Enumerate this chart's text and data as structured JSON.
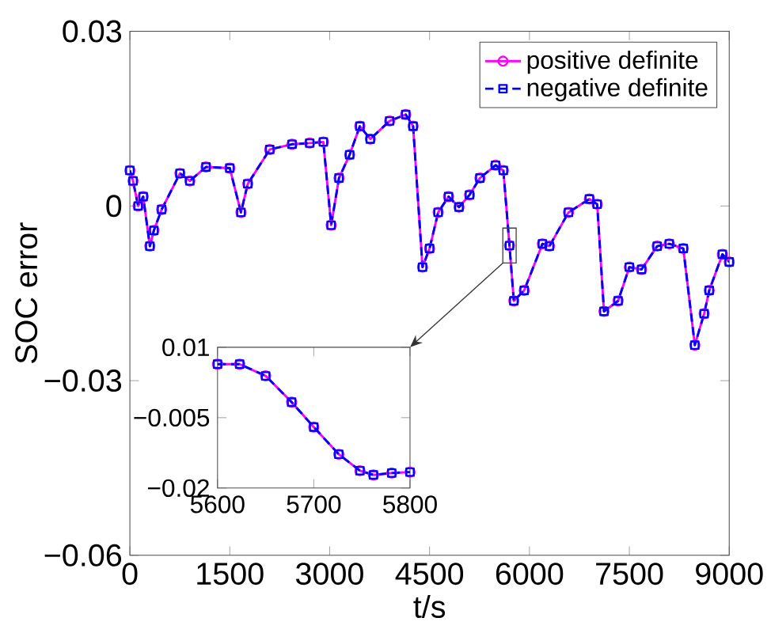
{
  "chart_data": [
    {
      "type": "line",
      "xlabel": "t/s",
      "ylabel": "SOC error",
      "x": [
        0,
        47,
        124,
        200,
        300,
        360,
        477,
        752,
        900,
        1143,
        1500,
        1668,
        1770,
        2100,
        2435,
        2700,
        2905,
        3022,
        3140,
        3300,
        3453,
        3610,
        3900,
        4142,
        4253,
        4394,
        4500,
        4629,
        4785,
        4942,
        5100,
        5256,
        5491,
        5608,
        5700,
        5765,
        5921,
        6195,
        6300,
        6586,
        6900,
        7017,
        7119,
        7331,
        7500,
        7683,
        7918,
        8100,
        8310,
        8483,
        8623,
        8700,
        8897,
        9000
      ],
      "series": [
        {
          "name": "positive definite",
          "color": "#ff00ff",
          "marker": "circle",
          "line_style": "solid",
          "values": [
            0.0061,
            0.0043,
            0.0,
            0.0016,
            -0.0069,
            -0.0042,
            -0.0006,
            0.0056,
            0.0043,
            0.0067,
            0.0065,
            -0.0011,
            0.0038,
            0.0097,
            0.0106,
            0.0108,
            0.011,
            -0.0033,
            0.0048,
            0.0088,
            0.0137,
            0.0115,
            0.0146,
            0.0157,
            0.0137,
            -0.0105,
            -0.0073,
            -0.0011,
            0.0016,
            -0.0002,
            0.0019,
            0.0048,
            0.007,
            0.0061,
            -0.0068,
            -0.0163,
            -0.0145,
            -0.0065,
            -0.0069,
            -0.0011,
            0.0012,
            0.0003,
            -0.0181,
            -0.0163,
            -0.0105,
            -0.0109,
            -0.0069,
            -0.0065,
            -0.0073,
            -0.0239,
            -0.0185,
            -0.0145,
            -0.0083,
            -0.0096
          ]
        },
        {
          "name": "negative definite",
          "color": "#0000ff",
          "marker": "square",
          "line_style": "dashed",
          "values": [
            0.0061,
            0.0043,
            0.0,
            0.0016,
            -0.0069,
            -0.0042,
            -0.0006,
            0.0056,
            0.0043,
            0.0067,
            0.0065,
            -0.0011,
            0.0038,
            0.0097,
            0.0106,
            0.0108,
            0.011,
            -0.0033,
            0.0048,
            0.0088,
            0.0137,
            0.0115,
            0.0146,
            0.0157,
            0.0137,
            -0.0105,
            -0.0073,
            -0.0011,
            0.0016,
            -0.0002,
            0.0019,
            0.0048,
            0.007,
            0.0061,
            -0.0068,
            -0.0163,
            -0.0145,
            -0.0065,
            -0.0069,
            -0.0011,
            0.0012,
            0.0003,
            -0.0181,
            -0.0163,
            -0.0105,
            -0.0109,
            -0.0069,
            -0.0065,
            -0.0073,
            -0.0239,
            -0.0185,
            -0.0145,
            -0.0083,
            -0.0096
          ]
        }
      ],
      "xlim": [
        0,
        9000
      ],
      "ylim": [
        -0.06,
        0.03
      ],
      "xticks": [
        0,
        1500,
        3000,
        4500,
        6000,
        7500,
        9000
      ],
      "yticks": [
        {
          "value": -0.06,
          "label": "−0.06"
        },
        {
          "value": -0.03,
          "label": "−0.03"
        },
        0,
        0.03
      ],
      "legend": "top right"
    },
    {
      "type": "line",
      "x": [
        5600,
        5623,
        5650,
        5677,
        5700,
        5726,
        5748,
        5762,
        5781,
        5800
      ],
      "series": [
        {
          "color": "#ff00ff",
          "marker": "circle",
          "line_style": "solid",
          "values": [
            0.0064,
            0.0064,
            0.0039,
            -0.0017,
            -0.007,
            -0.0128,
            -0.0163,
            -0.0172,
            -0.0168,
            -0.0166
          ]
        },
        {
          "color": "#0000ff",
          "marker": "square",
          "line_style": "dashed",
          "values": [
            0.0064,
            0.0064,
            0.0039,
            -0.0017,
            -0.007,
            -0.0128,
            -0.0163,
            -0.0172,
            -0.0168,
            -0.0166
          ]
        }
      ],
      "xlim": [
        5600,
        5800
      ],
      "ylim": [
        -0.02,
        0.01
      ],
      "xticks": [
        5600,
        5700,
        5800
      ],
      "yticks": [
        {
          "value": -0.02,
          "label": "−0.02"
        },
        {
          "value": -0.005,
          "label": "−0.005"
        },
        0.01
      ]
    }
  ]
}
